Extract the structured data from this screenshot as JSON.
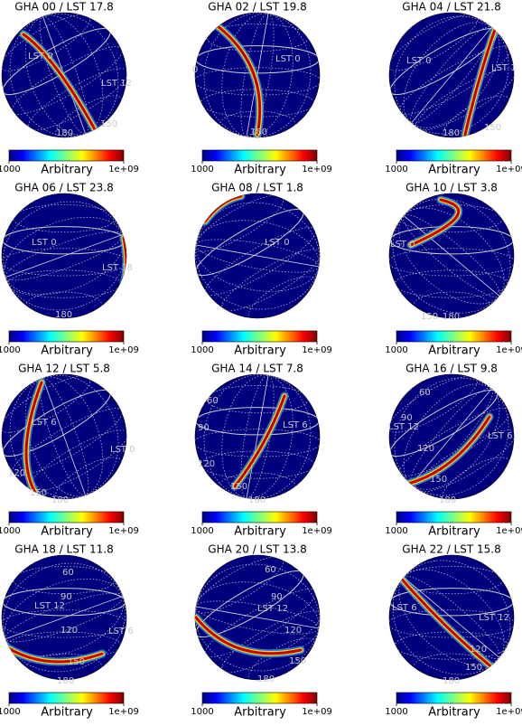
{
  "chart_data": [
    {
      "type": "map",
      "title": "GHA 00 / LST 17.8",
      "log_color": true,
      "clim": [
        1000,
        1000000000
      ],
      "colorbar": {
        "label": "Arbitrary",
        "ticks": [
          1000,
          {
            "value": 1000000000,
            "label": "1e+09"
          }
        ]
      },
      "annotations": [
        "LST 0",
        "LST 12",
        "150",
        "180"
      ]
    },
    {
      "type": "map",
      "title": "GHA 02 / LST 19.8",
      "log_color": true,
      "clim": [
        1000,
        1000000000
      ],
      "colorbar": {
        "label": "Arbitrary",
        "ticks": [
          1000,
          {
            "value": 1000000000,
            "label": "1e+09"
          }
        ]
      },
      "annotations": [
        "0",
        "LST 0",
        "180"
      ]
    },
    {
      "type": "map",
      "title": "GHA 04 / LST 21.8",
      "log_color": true,
      "clim": [
        1000,
        1000000000
      ],
      "colorbar": {
        "label": "Arbitrary",
        "ticks": [
          1000,
          {
            "value": 1000000000,
            "label": "1e+09"
          }
        ]
      },
      "annotations": [
        "LST 0",
        "LST 1",
        "150",
        "180"
      ]
    },
    {
      "type": "map",
      "title": "GHA 06 / LST 23.8",
      "log_color": true,
      "clim": [
        1000,
        1000000000
      ],
      "colorbar": {
        "label": "Arbitrary",
        "ticks": [
          1000,
          {
            "value": 1000000000,
            "label": "1e+09"
          }
        ]
      },
      "annotations": [
        "LST 0",
        "LST 18",
        "180"
      ]
    },
    {
      "type": "map",
      "title": "GHA 08 / LST 1.8",
      "log_color": true,
      "clim": [
        1000,
        1000000000
      ],
      "colorbar": {
        "label": "Arbitrary",
        "ticks": [
          1000,
          {
            "value": 1000000000,
            "label": "1e+09"
          }
        ]
      },
      "annotations": [
        "LST 0"
      ]
    },
    {
      "type": "map",
      "title": "GHA 10 / LST 3.8",
      "log_color": true,
      "clim": [
        1000,
        1000000000
      ],
      "colorbar": {
        "label": "Arbitrary",
        "ticks": [
          1000,
          {
            "value": 1000000000,
            "label": "1e+09"
          }
        ]
      },
      "annotations": [
        "LST 0",
        "150",
        "180"
      ]
    },
    {
      "type": "map",
      "title": "GHA 12 / LST 5.8",
      "log_color": true,
      "clim": [
        1000,
        1000000000
      ],
      "colorbar": {
        "label": "Arbitrary",
        "ticks": [
          1000,
          {
            "value": 1000000000,
            "label": "1e+09"
          }
        ]
      },
      "annotations": [
        "LST 6",
        "LST 0",
        "120",
        "150",
        "180"
      ]
    },
    {
      "type": "map",
      "title": "GHA 14 / LST 7.8",
      "log_color": true,
      "clim": [
        1000,
        1000000000
      ],
      "colorbar": {
        "label": "Arbitrary",
        "ticks": [
          1000,
          {
            "value": 1000000000,
            "label": "1e+09"
          }
        ]
      },
      "annotations": [
        "60",
        "90",
        "LST 6",
        "120",
        "150",
        "180"
      ]
    },
    {
      "type": "map",
      "title": "GHA 16 / LST 9.8",
      "log_color": true,
      "clim": [
        1000,
        1000000000
      ],
      "colorbar": {
        "label": "Arbitrary",
        "ticks": [
          1000,
          {
            "value": 1000000000,
            "label": "1e+09"
          }
        ]
      },
      "annotations": [
        "60",
        "90",
        "LST 12",
        "LST 6",
        "120",
        "150",
        "180"
      ]
    },
    {
      "type": "map",
      "title": "GHA 18 / LST 11.8",
      "log_color": true,
      "clim": [
        1000,
        1000000000
      ],
      "colorbar": {
        "label": "Arbitrary",
        "ticks": [
          1000,
          {
            "value": 1000000000,
            "label": "1e+09"
          }
        ]
      },
      "annotations": [
        "60",
        "90",
        "LST 12",
        "120",
        "LST 6",
        "150",
        "180"
      ]
    },
    {
      "type": "map",
      "title": "GHA 20 / LST 13.8",
      "log_color": true,
      "clim": [
        1000,
        1000000000
      ],
      "colorbar": {
        "label": "Arbitrary",
        "ticks": [
          1000,
          {
            "value": 1000000000,
            "label": "1e+09"
          }
        ]
      },
      "annotations": [
        "60",
        "90",
        "LST 12",
        "120",
        "150",
        "180"
      ]
    },
    {
      "type": "map",
      "title": "GHA 22 / LST 15.8",
      "log_color": true,
      "clim": [
        1000,
        1000000000
      ],
      "colorbar": {
        "label": "Arbitrary",
        "ticks": [
          1000,
          {
            "value": 1000000000,
            "label": "1e+09"
          }
        ]
      },
      "annotations": [
        "LST 6",
        "LST 12",
        "120",
        "150",
        "180"
      ]
    }
  ]
}
